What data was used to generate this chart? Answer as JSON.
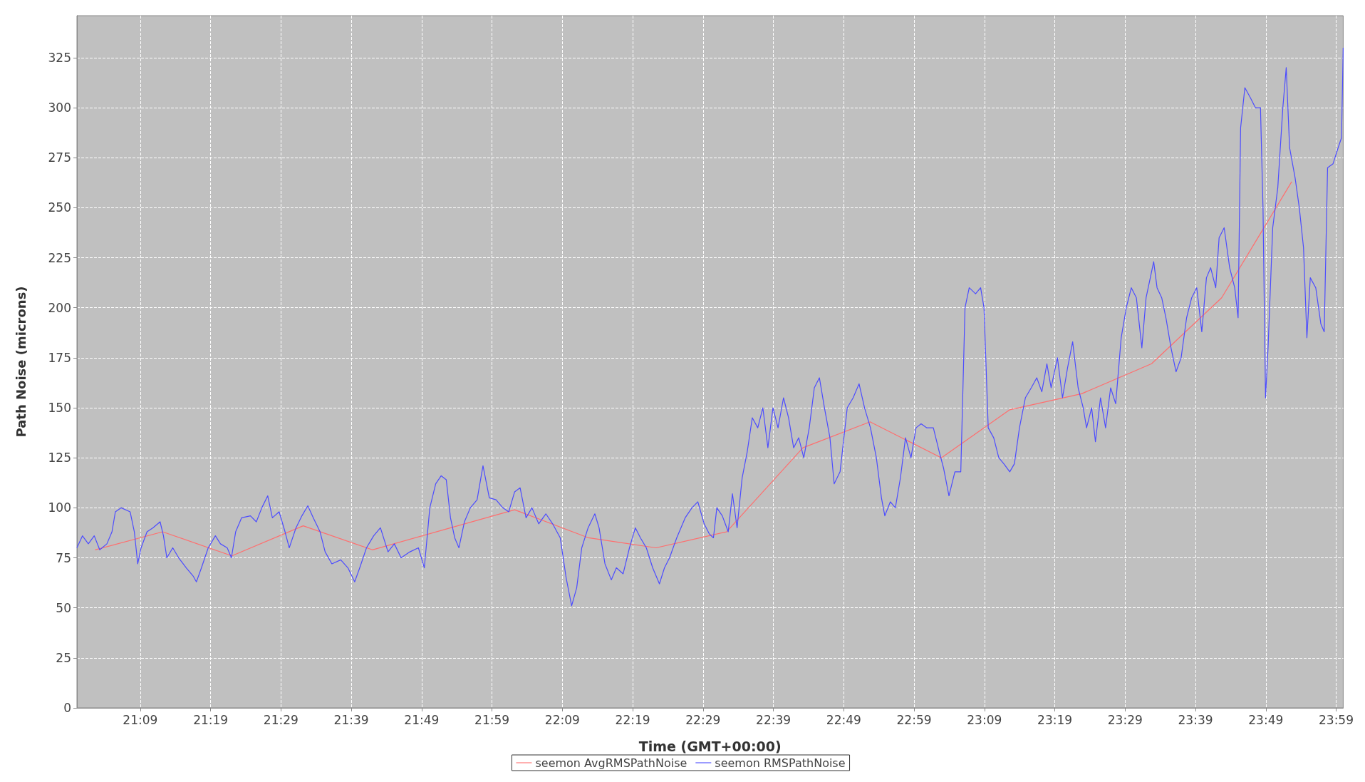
{
  "chart_data": {
    "type": "line",
    "xlabel": "Time (GMT+00:00)",
    "ylabel": "Path Noise (microns)",
    "xlim": [
      21,
      24
    ],
    "ylim": [
      0,
      346
    ],
    "xticks": [
      {
        "value": 21.15,
        "label": "21:09"
      },
      {
        "value": 21.3167,
        "label": "21:19"
      },
      {
        "value": 21.4833,
        "label": "21:29"
      },
      {
        "value": 21.65,
        "label": "21:39"
      },
      {
        "value": 21.8167,
        "label": "21:49"
      },
      {
        "value": 21.9833,
        "label": "21:59"
      },
      {
        "value": 22.15,
        "label": "22:09"
      },
      {
        "value": 22.3167,
        "label": "22:19"
      },
      {
        "value": 22.4833,
        "label": "22:29"
      },
      {
        "value": 22.65,
        "label": "22:39"
      },
      {
        "value": 22.8167,
        "label": "22:49"
      },
      {
        "value": 22.9833,
        "label": "22:59"
      },
      {
        "value": 23.15,
        "label": "23:09"
      },
      {
        "value": 23.3167,
        "label": "23:19"
      },
      {
        "value": 23.4833,
        "label": "23:29"
      },
      {
        "value": 23.65,
        "label": "23:39"
      },
      {
        "value": 23.8167,
        "label": "23:49"
      },
      {
        "value": 23.9833,
        "label": "23:59"
      }
    ],
    "yticks": [
      0,
      25,
      50,
      75,
      100,
      125,
      150,
      175,
      200,
      225,
      250,
      275,
      300,
      325
    ],
    "grid": true,
    "legend": "bottom",
    "marker": "none",
    "line_style": "solid",
    "series": [
      {
        "name": "seemon AvgRMSPathNoise",
        "color": "#ff6e6e",
        "x": [
          21.043,
          21.203,
          21.367,
          21.536,
          21.7,
          22.037,
          22.212,
          22.372,
          22.539,
          22.72,
          22.879,
          23.048,
          23.21,
          23.38,
          23.546,
          23.712,
          23.878
        ],
        "values": [
          79,
          88,
          76,
          91,
          79,
          99,
          85,
          80,
          88,
          130,
          143,
          125,
          149,
          157,
          172,
          205,
          263
        ]
      },
      {
        "name": "seemon RMSPathNoise",
        "color": "#4c4cff",
        "x": [
          21.0,
          21.013,
          21.027,
          21.041,
          21.054,
          21.071,
          21.083,
          21.091,
          21.105,
          21.126,
          21.136,
          21.144,
          21.152,
          21.166,
          21.18,
          21.197,
          21.205,
          21.213,
          21.227,
          21.241,
          21.259,
          21.275,
          21.283,
          21.295,
          21.311,
          21.328,
          21.34,
          21.356,
          21.366,
          21.376,
          21.39,
          21.411,
          21.425,
          21.438,
          21.452,
          21.463,
          21.479,
          21.493,
          21.503,
          21.519,
          21.533,
          21.547,
          21.56,
          21.576,
          21.588,
          21.604,
          21.625,
          21.642,
          21.658,
          21.67,
          21.686,
          21.703,
          21.719,
          21.737,
          21.752,
          21.768,
          21.789,
          21.809,
          21.823,
          21.836,
          21.85,
          21.863,
          21.875,
          21.885,
          21.895,
          21.905,
          21.918,
          21.932,
          21.948,
          21.962,
          21.977,
          21.993,
          22.009,
          22.023,
          22.037,
          22.05,
          22.064,
          22.078,
          22.094,
          22.111,
          22.127,
          22.145,
          22.159,
          22.172,
          22.184,
          22.196,
          22.211,
          22.227,
          22.237,
          22.251,
          22.266,
          22.278,
          22.294,
          22.309,
          22.323,
          22.335,
          22.349,
          22.364,
          22.38,
          22.392,
          22.404,
          22.421,
          22.441,
          22.457,
          22.471,
          22.486,
          22.498,
          22.508,
          22.516,
          22.529,
          22.543,
          22.553,
          22.564,
          22.576,
          22.588,
          22.6,
          22.613,
          22.625,
          22.637,
          22.649,
          22.661,
          22.674,
          22.686,
          22.698,
          22.71,
          22.722,
          22.735,
          22.747,
          22.759,
          22.771,
          22.784,
          22.794,
          22.808,
          22.825,
          22.839,
          22.853,
          22.866,
          22.88,
          22.894,
          22.906,
          22.914,
          22.927,
          22.939,
          22.951,
          22.963,
          22.976,
          22.988,
          23.0,
          23.013,
          23.029,
          23.043,
          23.053,
          23.066,
          23.08,
          23.094,
          23.104,
          23.114,
          23.129,
          23.141,
          23.149,
          23.159,
          23.172,
          23.184,
          23.196,
          23.21,
          23.221,
          23.233,
          23.247,
          23.261,
          23.274,
          23.286,
          23.298,
          23.308,
          23.323,
          23.335,
          23.347,
          23.359,
          23.372,
          23.384,
          23.392,
          23.404,
          23.413,
          23.425,
          23.437,
          23.449,
          23.461,
          23.474,
          23.486,
          23.498,
          23.51,
          23.523,
          23.533,
          23.543,
          23.551,
          23.559,
          23.57,
          23.58,
          23.592,
          23.604,
          23.616,
          23.629,
          23.641,
          23.653,
          23.665,
          23.676,
          23.686,
          23.698,
          23.706,
          23.718,
          23.731,
          23.743,
          23.751,
          23.757,
          23.767,
          23.78,
          23.792,
          23.804,
          23.81,
          23.816,
          23.822,
          23.833,
          23.845,
          23.857,
          23.865,
          23.873,
          23.886,
          23.896,
          23.906,
          23.914,
          23.922,
          23.935,
          23.947,
          23.955,
          23.963,
          23.976,
          23.988,
          23.996,
          24.0
        ],
        "values": [
          80,
          86,
          82,
          86,
          79,
          82,
          88,
          98,
          100,
          98,
          88,
          72,
          80,
          88,
          90,
          93,
          86,
          75,
          80,
          75,
          70,
          66,
          63,
          70,
          80,
          86,
          82,
          80,
          75,
          88,
          95,
          96,
          93,
          100,
          106,
          95,
          98,
          88,
          80,
          90,
          96,
          101,
          95,
          88,
          78,
          72,
          74,
          70,
          63,
          70,
          80,
          86,
          90,
          78,
          82,
          75,
          78,
          80,
          70,
          100,
          112,
          116,
          114,
          95,
          85,
          80,
          93,
          100,
          104,
          121,
          105,
          104,
          100,
          98,
          108,
          110,
          95,
          100,
          92,
          97,
          92,
          85,
          65,
          51,
          60,
          80,
          90,
          97,
          90,
          72,
          64,
          70,
          67,
          80,
          90,
          85,
          80,
          70,
          62,
          70,
          75,
          85,
          95,
          100,
          103,
          92,
          87,
          85,
          100,
          96,
          88,
          107,
          90,
          115,
          128,
          145,
          140,
          150,
          130,
          150,
          140,
          155,
          145,
          130,
          135,
          125,
          140,
          160,
          165,
          150,
          135,
          112,
          118,
          150,
          155,
          162,
          150,
          140,
          125,
          105,
          96,
          103,
          100,
          115,
          135,
          125,
          140,
          142,
          140,
          140,
          128,
          120,
          106,
          118,
          118,
          200,
          210,
          207,
          210,
          200,
          140,
          135,
          125,
          122,
          118,
          122,
          140,
          155,
          160,
          165,
          158,
          172,
          160,
          175,
          155,
          170,
          183,
          160,
          150,
          140,
          150,
          133,
          155,
          140,
          160,
          152,
          185,
          200,
          210,
          205,
          180,
          205,
          215,
          223,
          210,
          205,
          195,
          180,
          168,
          175,
          195,
          205,
          210,
          188,
          215,
          220,
          210,
          235,
          240,
          220,
          210,
          195,
          290,
          310,
          305,
          300,
          300,
          250,
          155,
          180,
          240,
          260,
          300,
          320,
          280,
          265,
          250,
          230,
          185,
          215,
          210,
          192,
          188,
          270,
          272,
          280,
          285,
          330
        ]
      }
    ]
  }
}
